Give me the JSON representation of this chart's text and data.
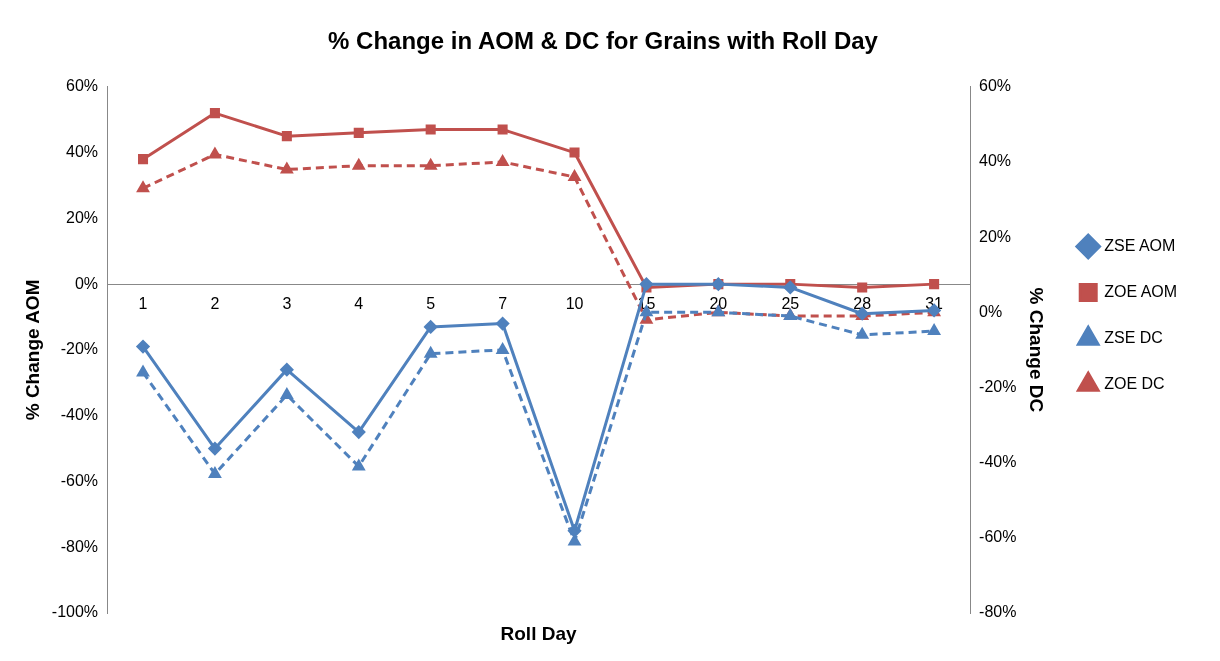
{
  "chart_data": {
    "type": "line",
    "title": "% Change in AOM & DC for Grains with Roll Day",
    "xlabel": "Roll Day",
    "ylabel": "% Change AOM",
    "y2label": "% Change DC",
    "legend": "right",
    "categories": [
      "1",
      "2",
      "3",
      "4",
      "5",
      "7",
      "10",
      "15",
      "20",
      "25",
      "28",
      "31"
    ],
    "ylim": [
      -100,
      60
    ],
    "yticks": [
      {
        "value": -100,
        "label": "-100%"
      },
      {
        "value": -80,
        "label": "-80%"
      },
      {
        "value": -60,
        "label": "-60%"
      },
      {
        "value": -40,
        "label": "-40%"
      },
      {
        "value": -20,
        "label": "-20%"
      },
      {
        "value": 0,
        "label": "0%"
      },
      {
        "value": 20,
        "label": "20%"
      },
      {
        "value": 40,
        "label": "40%"
      },
      {
        "value": 60,
        "label": "60%"
      }
    ],
    "y2lim": [
      -80,
      60
    ],
    "y2ticks": [
      {
        "value": -80,
        "label": "-80%"
      },
      {
        "value": -60,
        "label": "-60%"
      },
      {
        "value": -40,
        "label": "-40%"
      },
      {
        "value": -20,
        "label": "-20%"
      },
      {
        "value": 0,
        "label": "0%"
      },
      {
        "value": 20,
        "label": "20%"
      },
      {
        "value": 40,
        "label": "40%"
      },
      {
        "value": 60,
        "label": "60%"
      }
    ],
    "series": [
      {
        "name": "ZSE AOM",
        "color": "#4f81bd",
        "marker": "diamond",
        "line_style": "solid",
        "values": [
          -19,
          -50,
          -26,
          -45,
          -13,
          -12,
          -75,
          0,
          0,
          -1,
          -9,
          -8
        ]
      },
      {
        "name": "ZOE AOM",
        "color": "#c0504d",
        "marker": "square",
        "line_style": "solid",
        "values": [
          38,
          52,
          45,
          46,
          47,
          47,
          40,
          -1,
          0,
          0,
          -1,
          0
        ]
      },
      {
        "name": "ZSE DC",
        "color": "#4f81bd",
        "marker": "triangle",
        "line_style": "dashed",
        "axis": "y2",
        "values": [
          -16,
          -43,
          -22,
          -41,
          -11,
          -10,
          -61,
          0,
          0,
          -1,
          -6,
          -5
        ]
      },
      {
        "name": "ZOE DC",
        "color": "#c0504d",
        "marker": "triangle",
        "line_style": "dashed",
        "axis": "y2",
        "values": [
          33,
          42,
          38,
          39,
          39,
          40,
          36,
          -2,
          0,
          -1,
          -1,
          0
        ]
      }
    ]
  }
}
